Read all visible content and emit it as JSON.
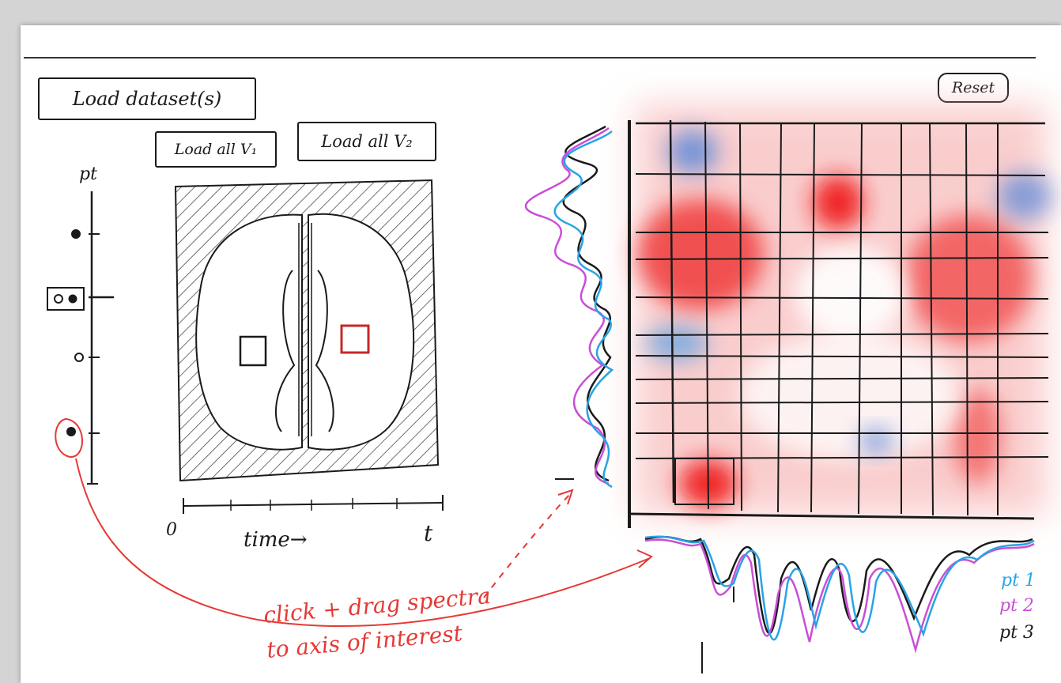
{
  "buttons": {
    "load_datasets": "Load dataset(s)",
    "load_all_v1": "Load all V₁",
    "load_all_v2": "Load all V₂",
    "reset": "Reset"
  },
  "patient_axis": {
    "label": "pt"
  },
  "time_axis": {
    "start_label": "0",
    "label": "time→",
    "end_label": "t"
  },
  "annotation": {
    "line1": "click + drag spectra",
    "line2": "to axis of interest",
    "color": "#e53935"
  },
  "legend": [
    {
      "label": "pt 1",
      "color": "#29a3e6"
    },
    {
      "label": "pt 2",
      "color": "#c94fd6"
    },
    {
      "label": "pt 3",
      "color": "#1a1a1a"
    }
  ],
  "colors": {
    "positive": "#f03a3a",
    "negative": "#6b8fd8",
    "ink": "#1a1a1a"
  }
}
